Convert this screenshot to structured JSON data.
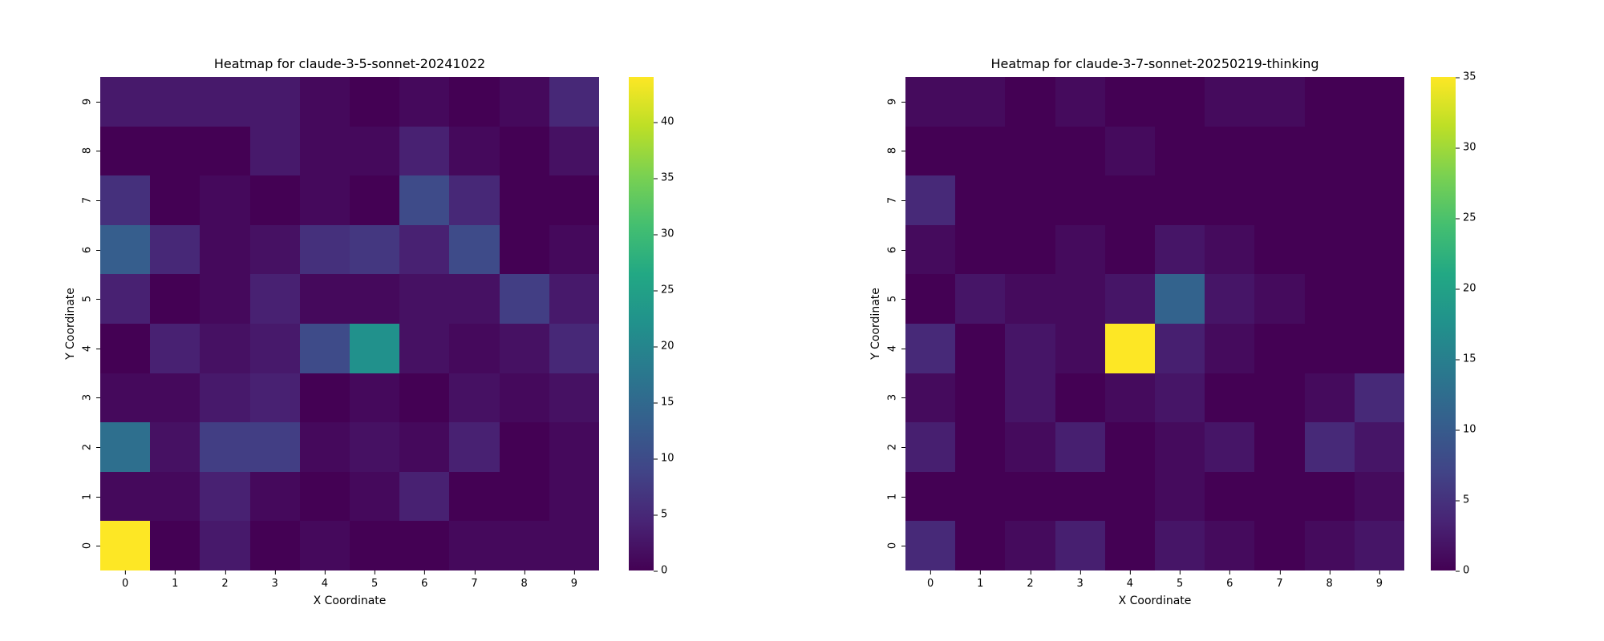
{
  "chart_data": [
    {
      "type": "heatmap",
      "title": "Heatmap for claude-3-5-sonnet-20241022",
      "xlabel": "X Coordinate",
      "ylabel": "Y Coordinate",
      "x": [
        0,
        1,
        2,
        3,
        4,
        5,
        6,
        7,
        8,
        9
      ],
      "y": [
        0,
        1,
        2,
        3,
        4,
        5,
        6,
        7,
        8,
        9
      ],
      "colormap": "viridis",
      "vmin": 0,
      "vmax": 44,
      "colorbar_ticks": [
        0,
        5,
        10,
        15,
        20,
        25,
        30,
        35,
        40
      ],
      "values_by_row_y": {
        "9": [
          3,
          3,
          3,
          3,
          1,
          0,
          1,
          0,
          1,
          5
        ],
        "8": [
          0,
          0,
          0,
          3,
          1,
          1,
          4,
          1,
          0,
          2
        ],
        "7": [
          6,
          0,
          1,
          0,
          1,
          0,
          10,
          5,
          0,
          0
        ],
        "6": [
          13,
          5,
          1,
          2,
          6,
          7,
          4,
          10,
          0,
          1
        ],
        "5": [
          4,
          0,
          1,
          4,
          1,
          1,
          2,
          2,
          8,
          3
        ],
        "4": [
          0,
          4,
          2,
          3,
          10,
          22,
          2,
          1,
          2,
          5
        ],
        "3": [
          1,
          1,
          3,
          4,
          0,
          1,
          0,
          2,
          1,
          2
        ],
        "2": [
          16,
          2,
          8,
          8,
          1,
          2,
          1,
          4,
          0,
          1
        ],
        "1": [
          1,
          1,
          4,
          1,
          0,
          1,
          4,
          0,
          0,
          1
        ],
        "0": [
          44,
          0,
          3,
          0,
          1,
          0,
          0,
          1,
          1,
          1
        ]
      }
    },
    {
      "type": "heatmap",
      "title": "Heatmap for claude-3-7-sonnet-20250219-thinking",
      "xlabel": "X Coordinate",
      "ylabel": "Y Coordinate",
      "x": [
        0,
        1,
        2,
        3,
        4,
        5,
        6,
        7,
        8,
        9
      ],
      "y": [
        0,
        1,
        2,
        3,
        4,
        5,
        6,
        7,
        8,
        9
      ],
      "colormap": "viridis",
      "vmin": 0,
      "vmax": 35,
      "colorbar_ticks": [
        0,
        5,
        10,
        15,
        20,
        25,
        30,
        35
      ],
      "values_by_row_y": {
        "9": [
          1,
          1,
          0,
          1,
          0,
          0,
          1,
          1,
          0,
          0
        ],
        "8": [
          0,
          0,
          0,
          0,
          1,
          0,
          0,
          0,
          0,
          0
        ],
        "7": [
          4,
          0,
          0,
          0,
          0,
          0,
          0,
          0,
          0,
          0
        ],
        "6": [
          1,
          0,
          0,
          1,
          0,
          2,
          1,
          0,
          0,
          0
        ],
        "5": [
          0,
          2,
          1,
          1,
          2,
          11,
          2,
          1,
          0,
          0
        ],
        "4": [
          4,
          0,
          2,
          1,
          35,
          3,
          1,
          0,
          0,
          0
        ],
        "3": [
          1,
          0,
          2,
          0,
          1,
          2,
          0,
          0,
          1,
          4
        ],
        "2": [
          3,
          0,
          1,
          3,
          0,
          1,
          2,
          0,
          4,
          2
        ],
        "1": [
          0,
          0,
          0,
          0,
          0,
          1,
          0,
          0,
          0,
          1
        ],
        "0": [
          4,
          0,
          1,
          3,
          0,
          2,
          1,
          0,
          1,
          2
        ]
      }
    }
  ],
  "panels": [
    {
      "title": "Heatmap for claude-3-5-sonnet-20241022",
      "xlabel": "X Coordinate",
      "ylabel": "Y Coordinate",
      "xticks": [
        "0",
        "1",
        "2",
        "3",
        "4",
        "5",
        "6",
        "7",
        "8",
        "9"
      ],
      "yticks": [
        "0",
        "1",
        "2",
        "3",
        "4",
        "5",
        "6",
        "7",
        "8",
        "9"
      ],
      "cbar_ticks": [
        "0",
        "5",
        "10",
        "15",
        "20",
        "25",
        "30",
        "35",
        "40"
      ]
    },
    {
      "title": "Heatmap for claude-3-7-sonnet-20250219-thinking",
      "xlabel": "X Coordinate",
      "ylabel": "Y Coordinate",
      "xticks": [
        "0",
        "1",
        "2",
        "3",
        "4",
        "5",
        "6",
        "7",
        "8",
        "9"
      ],
      "yticks": [
        "0",
        "1",
        "2",
        "3",
        "4",
        "5",
        "6",
        "7",
        "8",
        "9"
      ],
      "cbar_ticks": [
        "0",
        "5",
        "10",
        "15",
        "20",
        "25",
        "30",
        "35"
      ]
    }
  ]
}
